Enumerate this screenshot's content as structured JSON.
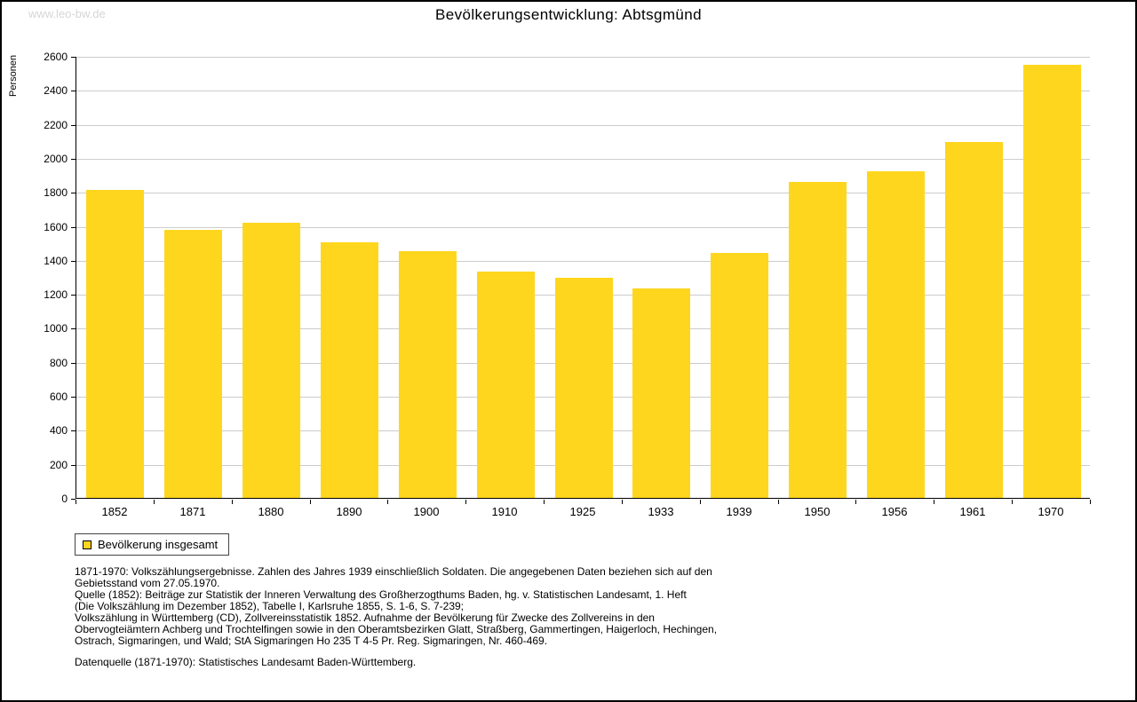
{
  "page": {
    "watermark": "www.leo-bw.de",
    "title": "Bevölkerungsentwicklung: Abtsgmünd"
  },
  "chart_data": {
    "type": "bar",
    "title": "Bevölkerungsentwicklung: Abtsgmünd",
    "ylabel": "Personen",
    "xlabel": "",
    "categories": [
      "1852",
      "1871",
      "1880",
      "1890",
      "1900",
      "1910",
      "1925",
      "1933",
      "1939",
      "1950",
      "1956",
      "1961",
      "1970"
    ],
    "values": [
      1811,
      1576,
      1617,
      1506,
      1454,
      1331,
      1297,
      1232,
      1439,
      1861,
      1923,
      2093,
      2547
    ],
    "ylim": [
      0,
      2600
    ],
    "ytick_step": 200,
    "bar_color": "#FFD61E",
    "grid": true,
    "gridline_color": "#cccccc",
    "legend": {
      "label": "Bevölkerung insgesamt",
      "position": "bottom-left",
      "swatch_color": "#FFD61E"
    }
  },
  "footnotes": {
    "lines": [
      "1871-1970: Volkszählungsergebnisse. Zahlen des Jahres 1939 einschließlich Soldaten. Die angegebenen Daten beziehen sich auf den",
      "Gebietsstand vom 27.05.1970.",
      "Quelle (1852): Beiträge zur Statistik der Inneren Verwaltung des Großherzogthums Baden, hg. v. Statistischen Landesamt, 1. Heft",
      "(Die Volkszählung im Dezember 1852), Tabelle I, Karlsruhe 1855, S. 1-6, S. 7-239;",
      "Volkszählung in Württemberg (CD), Zollvereinsstatistik 1852. Aufnahme der Bevölkerung für Zwecke des Zollvereins in den",
      "Obervogteiämtern Achberg und Trochtelfingen sowie in den Oberamtsbezirken Glatt, Straßberg, Gammertingen, Haigerloch, Hechingen,",
      "Ostrach, Sigmaringen, und Wald; StA Sigmaringen Ho 235 T 4-5 Pr. Reg. Sigmaringen, Nr. 460-469."
    ],
    "datasource": "Datenquelle (1871-1970): Statistisches Landesamt Baden-Württemberg."
  }
}
